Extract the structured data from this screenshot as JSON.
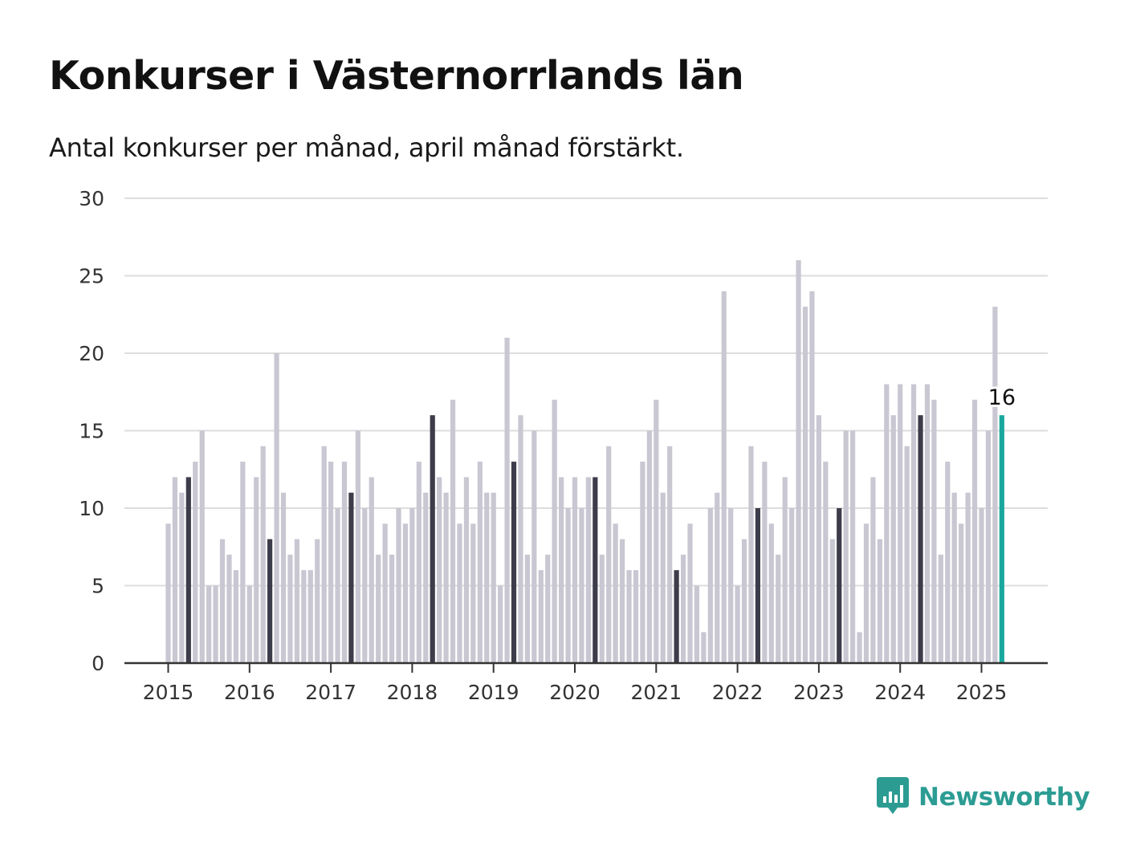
{
  "title": "Konkurser i Västernorrlands län",
  "subtitle": "Antal konkurser per månad, april månad förstärkt.",
  "brand": {
    "name": "Newsworthy",
    "icon": "newsworthy-logo-icon"
  },
  "colors": {
    "bar": "#c8c7d2",
    "highlight": "#3d3c4a",
    "latest": "#1aa89e",
    "grid": "#dddddd",
    "axis": "#333333",
    "brand": "#2c9c93"
  },
  "chart_data": {
    "type": "bar",
    "xlabel": "",
    "ylabel": "",
    "ylim": [
      0,
      30
    ],
    "yticks": [
      0,
      5,
      10,
      15,
      20,
      25,
      30
    ],
    "xticks": [
      "2015",
      "2016",
      "2017",
      "2018",
      "2019",
      "2020",
      "2021",
      "2022",
      "2023",
      "2024",
      "2025"
    ],
    "start": "2015-01",
    "highlight_month": "april",
    "grid": true,
    "annotation": {
      "label": "16",
      "month": "2025-04"
    },
    "values": [
      9,
      12,
      11,
      12,
      13,
      15,
      5,
      5,
      8,
      7,
      6,
      13,
      5,
      12,
      14,
      8,
      20,
      11,
      7,
      8,
      6,
      6,
      8,
      14,
      13,
      10,
      13,
      11,
      15,
      10,
      12,
      7,
      9,
      7,
      10,
      9,
      10,
      13,
      11,
      16,
      12,
      11,
      17,
      9,
      12,
      9,
      13,
      11,
      11,
      5,
      21,
      13,
      16,
      7,
      15,
      6,
      7,
      17,
      12,
      10,
      12,
      10,
      12,
      12,
      7,
      14,
      9,
      8,
      6,
      6,
      13,
      15,
      17,
      11,
      14,
      6,
      7,
      9,
      5,
      2,
      10,
      11,
      24,
      10,
      5,
      8,
      14,
      10,
      13,
      9,
      7,
      12,
      10,
      26,
      23,
      24,
      16,
      13,
      8,
      10,
      15,
      15,
      2,
      9,
      12,
      8,
      18,
      16,
      18,
      14,
      18,
      16,
      18,
      17,
      7,
      13,
      11,
      9,
      11,
      17,
      10,
      15,
      23,
      16
    ]
  }
}
